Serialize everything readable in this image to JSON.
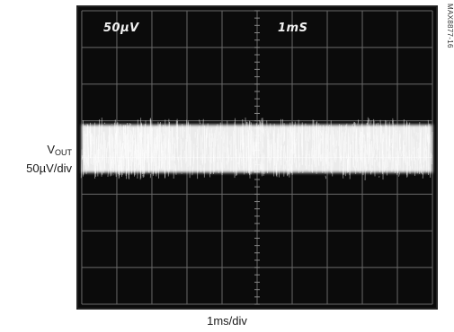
{
  "chart_data": {
    "type": "line",
    "title": "",
    "xlabel": "1ms/div",
    "ylabel": {
      "symbol": "V",
      "subscript": "OUT",
      "scale": "50µV/div"
    },
    "screen_text": {
      "vertical_scale": "50µV",
      "time_scale": "1mS"
    },
    "part_number": "MAX8877-16",
    "grid": {
      "divisions_x": 10,
      "divisions_y": 8
    },
    "x_range_ms": [
      0,
      10
    ],
    "y_range_uV": [
      -200,
      200
    ],
    "series": [
      {
        "trace_center_uV": 12,
        "noise_peak_to_peak_uV": 80,
        "color": "#ffffff"
      }
    ]
  }
}
